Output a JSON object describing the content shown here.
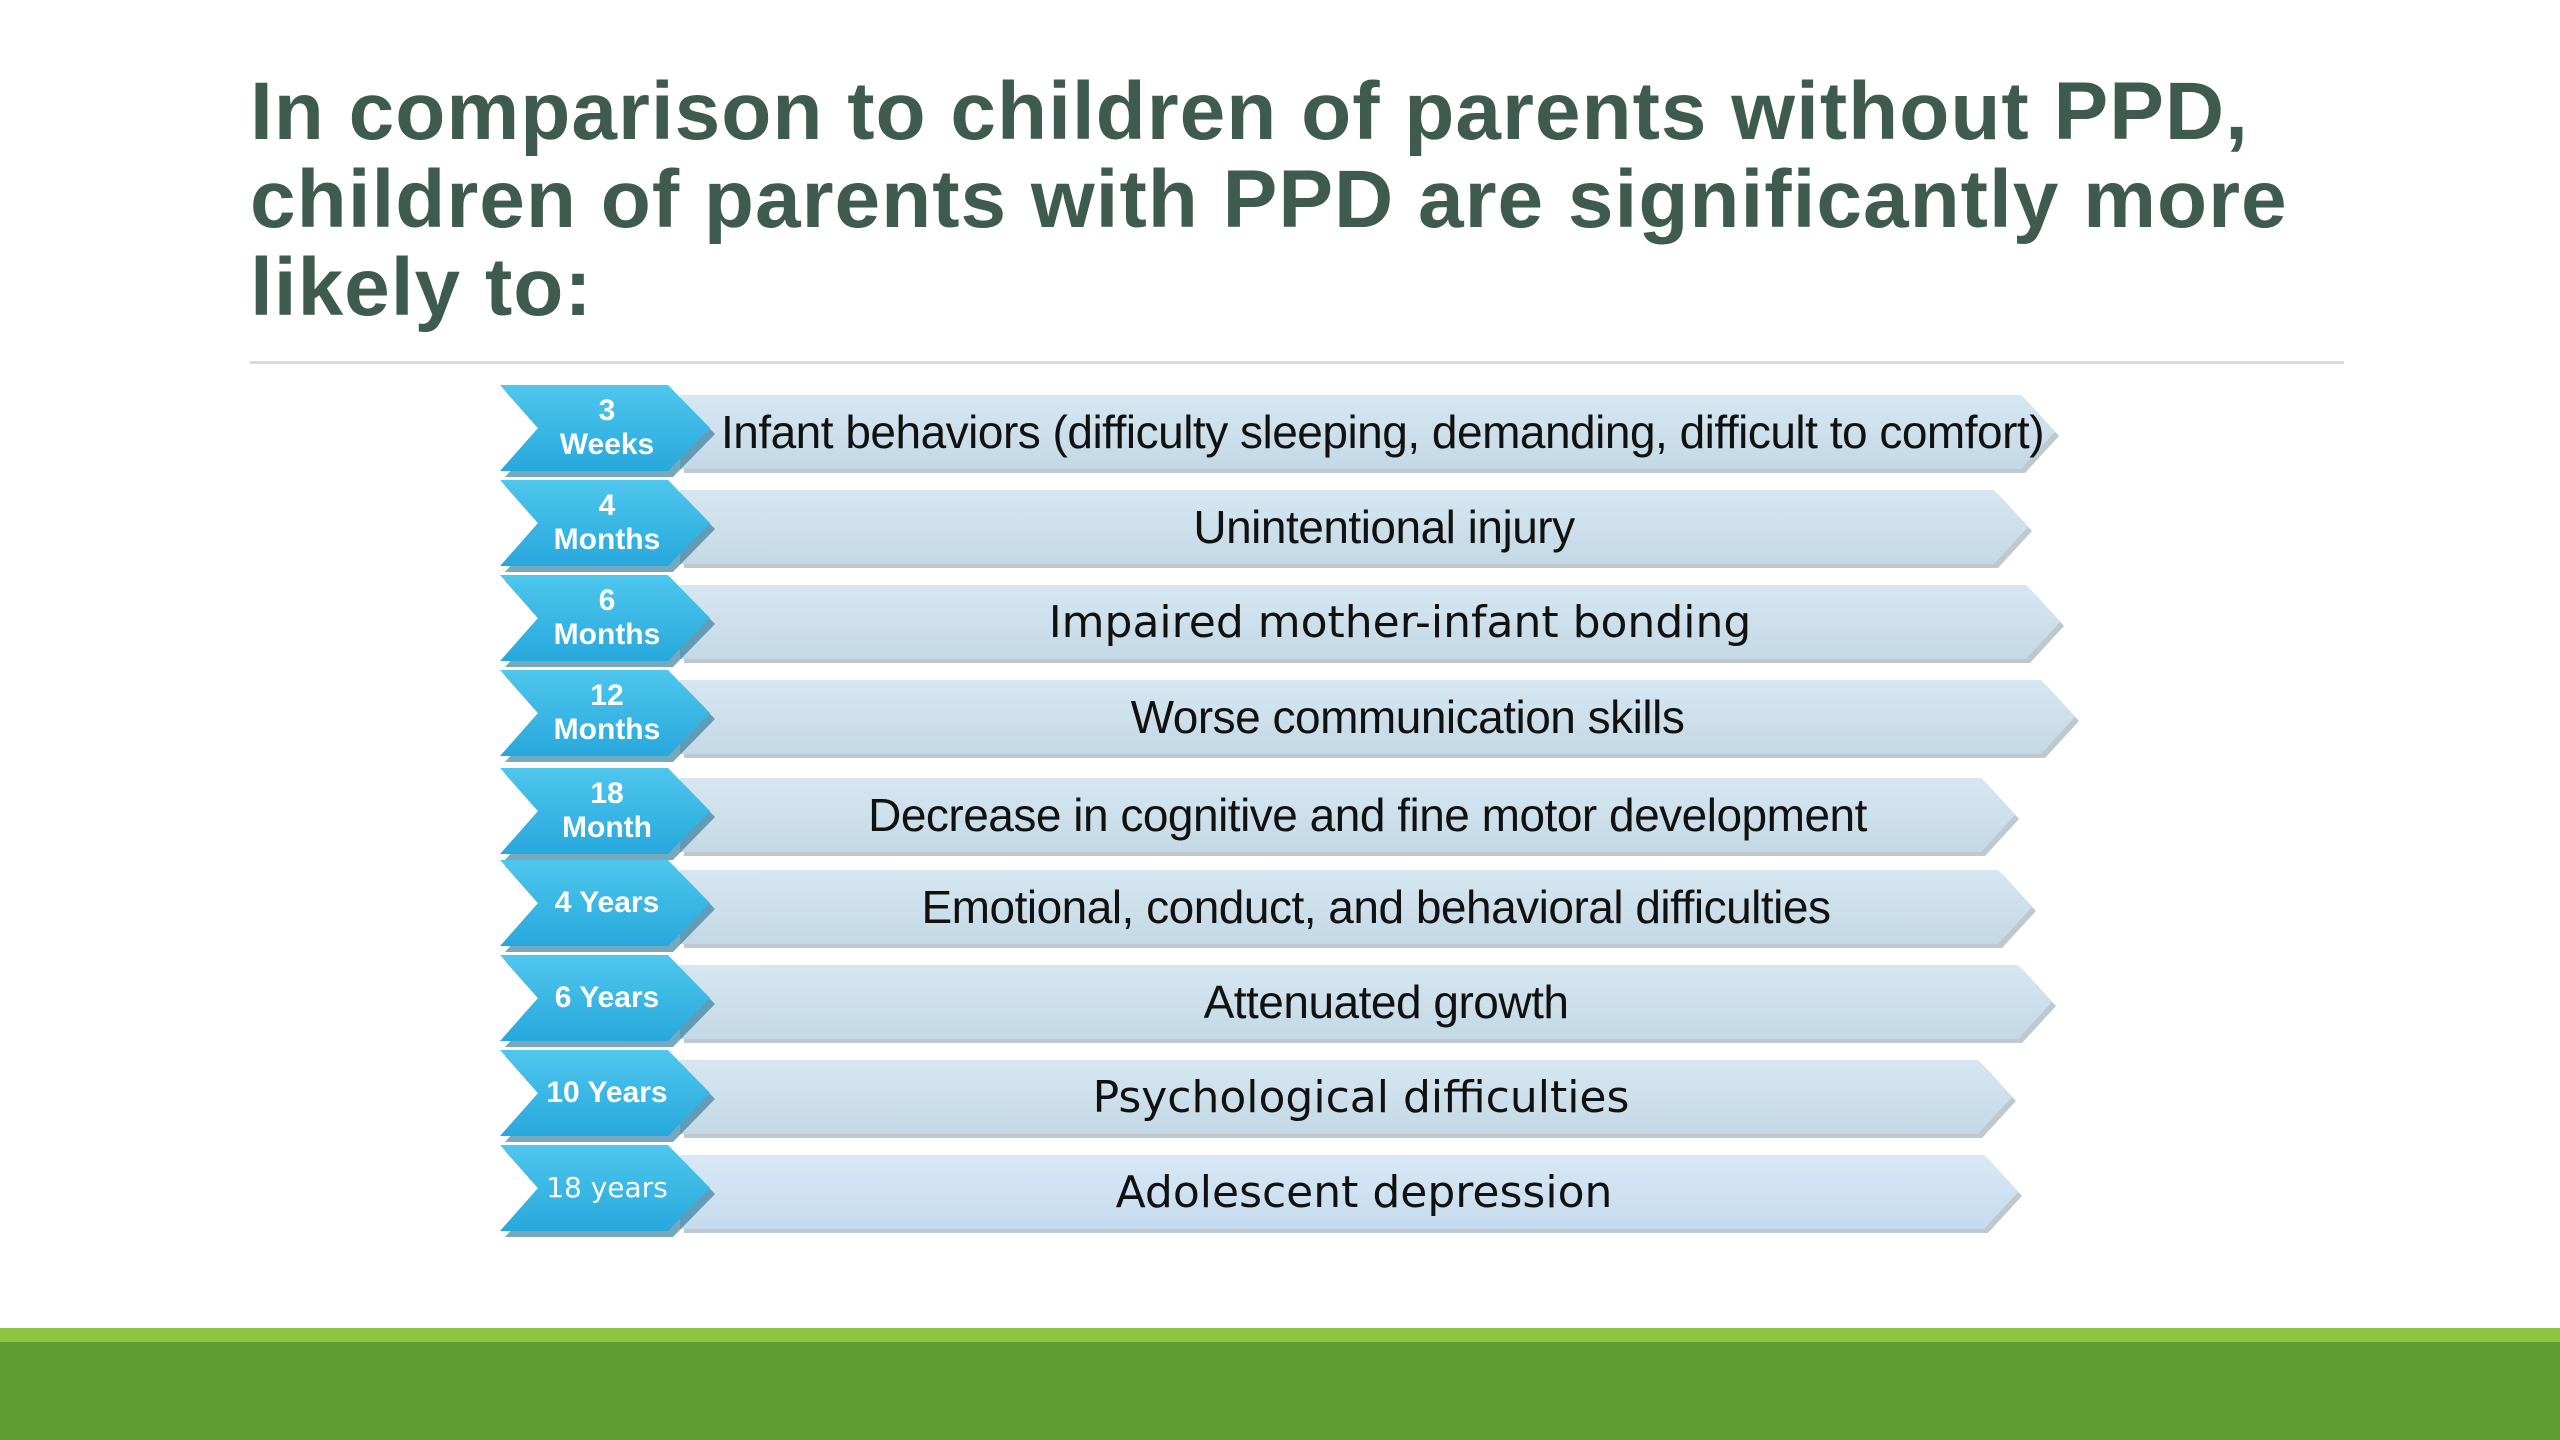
{
  "slide": {
    "title": "In comparison to children of parents without PPD, children of parents with PPD are significantly more likely to:"
  },
  "timeline": [
    {
      "age": "3\nWeeks",
      "outcome": "Infant behaviors (difficulty sleeping, demanding, difficult to comfort)"
    },
    {
      "age": "4\nMonths",
      "outcome": "Unintentional injury"
    },
    {
      "age": "6\nMonths",
      "outcome": "Impaired mother-infant bonding"
    },
    {
      "age": "12\nMonths",
      "outcome": "Worse communication skills"
    },
    {
      "age": "18\nMonth",
      "outcome": "Decrease in cognitive and fine motor development"
    },
    {
      "age": "4 Years",
      "outcome": "Emotional, conduct, and behavioral difficulties"
    },
    {
      "age": "6 Years",
      "outcome": "Attenuated growth"
    },
    {
      "age": "10 Years",
      "outcome": "Psychological difficulties"
    },
    {
      "age": "18 years",
      "outcome": "Adolescent depression"
    }
  ],
  "colors": {
    "title": "#3f5a4e",
    "chevron": "#27a8dc",
    "bar": "#c9dce8",
    "footer_light": "#8cc63f",
    "footer_dark": "#5e9e32"
  }
}
